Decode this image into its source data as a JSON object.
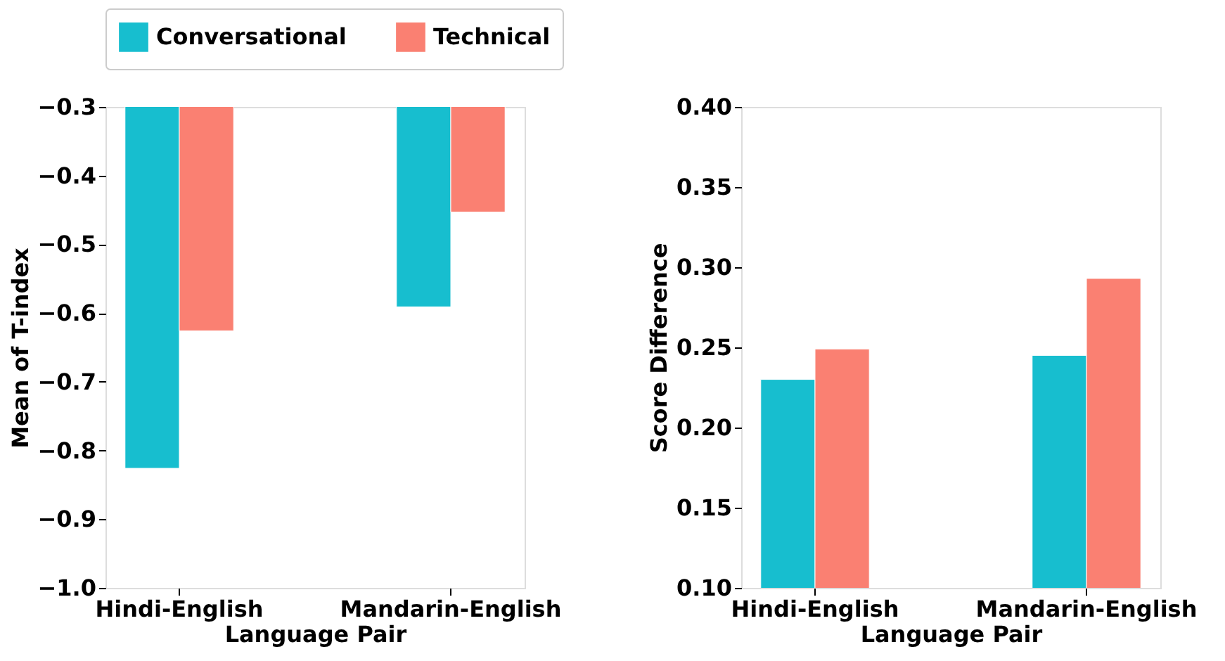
{
  "chart_data": [
    {
      "type": "bar",
      "categories": [
        "Hindi-English",
        "Mandarin-English"
      ],
      "xlabel": "Language Pair",
      "ylabel": "Mean of T-index",
      "series": [
        {
          "name": "Conversational",
          "color": "#17becf",
          "values": [
            -0.826,
            -0.591
          ]
        },
        {
          "name": "Technical",
          "color": "#fa8072",
          "values": [
            -0.626,
            -0.453
          ]
        }
      ],
      "ylim": [
        -1.0,
        -0.3
      ],
      "yticks": [
        {
          "value": -1.0,
          "label": "−1.0"
        },
        {
          "value": -0.9,
          "label": "−0.9"
        },
        {
          "value": -0.8,
          "label": "−0.8"
        },
        {
          "value": -0.7,
          "label": "−0.7"
        },
        {
          "value": -0.6,
          "label": "−0.6"
        },
        {
          "value": -0.5,
          "label": "−0.5"
        },
        {
          "value": -0.4,
          "label": "−0.4"
        },
        {
          "value": -0.3,
          "label": "−0.3"
        }
      ],
      "grid": false,
      "legend": "top"
    },
    {
      "type": "bar",
      "categories": [
        "Hindi-English",
        "Mandarin-English"
      ],
      "xlabel": "Language Pair",
      "ylabel": "Score Difference",
      "series": [
        {
          "name": "Conversational",
          "color": "#17becf",
          "values": [
            0.23,
            0.245
          ]
        },
        {
          "name": "Technical",
          "color": "#fa8072",
          "values": [
            0.249,
            0.293
          ]
        }
      ],
      "ylim": [
        0.1,
        0.4
      ],
      "yticks": [
        {
          "value": 0.1,
          "label": "0.10"
        },
        {
          "value": 0.15,
          "label": "0.15"
        },
        {
          "value": 0.2,
          "label": "0.20"
        },
        {
          "value": 0.25,
          "label": "0.25"
        },
        {
          "value": 0.3,
          "label": "0.30"
        },
        {
          "value": 0.35,
          "label": "0.35"
        },
        {
          "value": 0.4,
          "label": "0.40"
        }
      ],
      "grid": false,
      "legend": false
    }
  ]
}
